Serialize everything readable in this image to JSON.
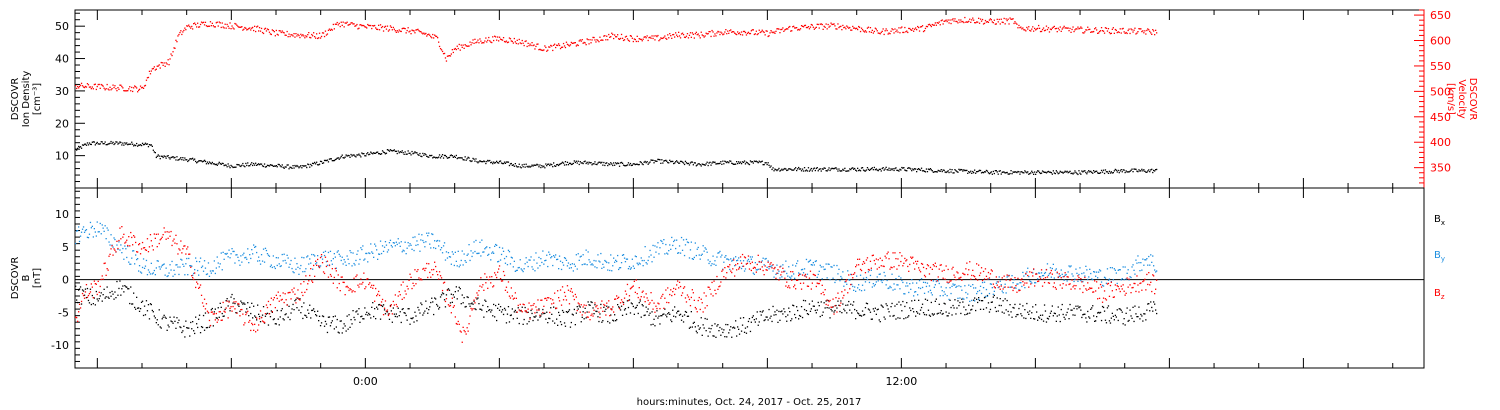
{
  "xlabel": "hours:minutes, Oct. 24, 2017 - Oct. 25, 2017",
  "chart_data": [
    {
      "type": "scatter",
      "panel": "top",
      "ylabel_left": [
        "DSCOVR",
        "Ion Density",
        "[cm⁻³]"
      ],
      "ylabel_right": [
        "DSCOVR",
        "Velocity",
        "[km/s]"
      ],
      "ylim_left": [
        0,
        55
      ],
      "ylim_right": [
        310,
        660
      ],
      "yticks_left": [
        10,
        20,
        30,
        40,
        50
      ],
      "yticks_right": [
        350,
        400,
        450,
        500,
        550,
        600,
        650
      ],
      "x_unit": "hours relative to 0:00 Oct. 25, 2017",
      "xlim": [
        -6.5,
        23.7
      ],
      "xticks": [
        {
          "x": 0,
          "label": "0:00"
        },
        {
          "x": 12,
          "label": "12:00"
        }
      ],
      "series": [
        {
          "color": "#000000",
          "axis": "left",
          "points": [
            [
              -6.5,
              12
            ],
            [
              -6.2,
              14
            ],
            [
              -5.5,
              14
            ],
            [
              -4.8,
              13.5
            ],
            [
              -4.7,
              10
            ],
            [
              -4.0,
              9
            ],
            [
              -3.5,
              8
            ],
            [
              -3.0,
              7
            ],
            [
              -2.5,
              7.5
            ],
            [
              -2.0,
              7
            ],
            [
              -1.5,
              6.5
            ],
            [
              -1.0,
              8
            ],
            [
              -0.5,
              10
            ],
            [
              0.0,
              10.5
            ],
            [
              0.5,
              11.5
            ],
            [
              1.0,
              11
            ],
            [
              1.5,
              10
            ],
            [
              2.0,
              10
            ],
            [
              2.5,
              8.5
            ],
            [
              3.0,
              8
            ],
            [
              3.5,
              7
            ],
            [
              4.0,
              7
            ],
            [
              4.5,
              8
            ],
            [
              5.0,
              8
            ],
            [
              5.5,
              7.5
            ],
            [
              6.0,
              7.5
            ],
            [
              6.5,
              8.5
            ],
            [
              7.0,
              8
            ],
            [
              7.5,
              7.5
            ],
            [
              8.0,
              8
            ],
            [
              9.0,
              8
            ],
            [
              9.1,
              6
            ],
            [
              10.0,
              6
            ],
            [
              11.0,
              6
            ],
            [
              12.0,
              6
            ],
            [
              13.0,
              5.5
            ],
            [
              14.0,
              5
            ],
            [
              15.0,
              5
            ],
            [
              16.0,
              5
            ],
            [
              17.0,
              5.5
            ],
            [
              17.7,
              5.5
            ]
          ]
        },
        {
          "color": "#ff0000",
          "axis": "right",
          "points": [
            [
              -6.5,
              512
            ],
            [
              -6.0,
              510
            ],
            [
              -5.5,
              508
            ],
            [
              -5.0,
              506
            ],
            [
              -4.8,
              545
            ],
            [
              -4.4,
              560
            ],
            [
              -4.2,
              610
            ],
            [
              -4.0,
              628
            ],
            [
              -3.5,
              635
            ],
            [
              -3.0,
              630
            ],
            [
              -2.5,
              625
            ],
            [
              -2.0,
              615
            ],
            [
              -1.5,
              612
            ],
            [
              -1.0,
              610
            ],
            [
              -0.6,
              635
            ],
            [
              0.0,
              628
            ],
            [
              0.5,
              625
            ],
            [
              1.0,
              620
            ],
            [
              1.3,
              615
            ],
            [
              1.6,
              605
            ],
            [
              1.8,
              565
            ],
            [
              2.0,
              585
            ],
            [
              2.5,
              600
            ],
            [
              3.0,
              605
            ],
            [
              3.5,
              598
            ],
            [
              4.0,
              585
            ],
            [
              4.5,
              592
            ],
            [
              5.0,
              600
            ],
            [
              5.5,
              610
            ],
            [
              6.0,
              605
            ],
            [
              6.5,
              605
            ],
            [
              7.0,
              612
            ],
            [
              7.5,
              612
            ],
            [
              8.0,
              618
            ],
            [
              8.5,
              618
            ],
            [
              9.0,
              615
            ],
            [
              9.5,
              625
            ],
            [
              10.0,
              628
            ],
            [
              10.5,
              630
            ],
            [
              11.0,
              625
            ],
            [
              11.5,
              618
            ],
            [
              12.0,
              622
            ],
            [
              12.5,
              625
            ],
            [
              13.0,
              640
            ],
            [
              13.5,
              642
            ],
            [
              14.0,
              638
            ],
            [
              14.5,
              640
            ],
            [
              14.6,
              625
            ],
            [
              15.0,
              625
            ],
            [
              16.0,
              622
            ],
            [
              17.0,
              620
            ],
            [
              17.7,
              618
            ]
          ]
        }
      ]
    },
    {
      "type": "scatter",
      "panel": "bottom",
      "ylabel_left": [
        "DSCOVR",
        "B",
        "[nT]"
      ],
      "ylim": [
        -13.5,
        14
      ],
      "yticks": [
        -10,
        -5,
        0,
        5,
        10
      ],
      "zero_line": true,
      "xlim": [
        -6.5,
        23.7
      ],
      "xticks": [
        {
          "x": 0,
          "label": "0:00"
        },
        {
          "x": 12,
          "label": "12:00"
        }
      ],
      "legend": [
        "B",
        "B",
        "B"
      ],
      "legend_subscripts": [
        "x",
        "y",
        "z"
      ],
      "legend_position": "right",
      "series": [
        {
          "legend_label": "Bx",
          "color": "#000000",
          "points": [
            [
              -6.5,
              -2
            ],
            [
              -6.0,
              -3
            ],
            [
              -5.5,
              -1
            ],
            [
              -5.0,
              -4
            ],
            [
              -4.5,
              -6.5
            ],
            [
              -4.0,
              -7.5
            ],
            [
              -3.5,
              -6
            ],
            [
              -3.0,
              -3.5
            ],
            [
              -2.5,
              -5
            ],
            [
              -2.0,
              -6
            ],
            [
              -1.5,
              -4
            ],
            [
              -1.0,
              -6.5
            ],
            [
              -0.5,
              -7
            ],
            [
              0.0,
              -4.5
            ],
            [
              0.5,
              -5
            ],
            [
              1.0,
              -5.5
            ],
            [
              1.5,
              -4
            ],
            [
              2.0,
              -2
            ],
            [
              2.5,
              -4
            ],
            [
              3.0,
              -5
            ],
            [
              3.5,
              -5.5
            ],
            [
              4.0,
              -5
            ],
            [
              4.5,
              -6
            ],
            [
              5.0,
              -4.5
            ],
            [
              5.5,
              -5.5
            ],
            [
              6.0,
              -4
            ],
            [
              6.5,
              -6
            ],
            [
              7.0,
              -5
            ],
            [
              7.5,
              -7
            ],
            [
              8.0,
              -7.5
            ],
            [
              8.5,
              -7
            ],
            [
              9.0,
              -5.5
            ],
            [
              9.5,
              -5
            ],
            [
              10.0,
              -4
            ],
            [
              10.5,
              -4.5
            ],
            [
              11.0,
              -4.5
            ],
            [
              11.5,
              -5
            ],
            [
              12.0,
              -4.5
            ],
            [
              12.5,
              -4
            ],
            [
              13.0,
              -4.5
            ],
            [
              13.5,
              -4
            ],
            [
              14.0,
              -3.5
            ],
            [
              14.5,
              -4.5
            ],
            [
              15.0,
              -5
            ],
            [
              16.0,
              -5
            ],
            [
              17.0,
              -5.5
            ],
            [
              17.7,
              -4.5
            ]
          ]
        },
        {
          "legend_label": "By",
          "color": "#1e8fe0",
          "points": [
            [
              -6.5,
              7
            ],
            [
              -6.0,
              8
            ],
            [
              -5.5,
              5
            ],
            [
              -5.0,
              2
            ],
            [
              -4.5,
              1.5
            ],
            [
              -4.0,
              2
            ],
            [
              -3.5,
              2
            ],
            [
              -3.0,
              3.5
            ],
            [
              -2.5,
              4
            ],
            [
              -2.0,
              3
            ],
            [
              -1.5,
              2
            ],
            [
              -1.0,
              3.5
            ],
            [
              -0.5,
              3
            ],
            [
              0.0,
              4
            ],
            [
              0.5,
              5
            ],
            [
              1.0,
              5.5
            ],
            [
              1.5,
              6
            ],
            [
              2.0,
              3
            ],
            [
              2.5,
              5
            ],
            [
              3.0,
              4
            ],
            [
              3.5,
              2
            ],
            [
              4.0,
              3.5
            ],
            [
              4.5,
              2.5
            ],
            [
              5.0,
              3.5
            ],
            [
              5.5,
              2.5
            ],
            [
              6.0,
              3
            ],
            [
              6.5,
              4.5
            ],
            [
              7.0,
              5.5
            ],
            [
              7.5,
              4
            ],
            [
              8.0,
              3
            ],
            [
              8.5,
              2.5
            ],
            [
              9.0,
              2
            ],
            [
              9.5,
              1.5
            ],
            [
              10.0,
              2
            ],
            [
              10.5,
              1
            ],
            [
              11.0,
              -0.5
            ],
            [
              11.5,
              0.5
            ],
            [
              12.0,
              -1
            ],
            [
              12.5,
              -1
            ],
            [
              13.0,
              -1.5
            ],
            [
              13.5,
              -2
            ],
            [
              14.0,
              -1
            ],
            [
              14.5,
              -0.5
            ],
            [
              15.0,
              1
            ],
            [
              15.5,
              1.5
            ],
            [
              16.0,
              1
            ],
            [
              16.5,
              0.5
            ],
            [
              17.0,
              1
            ],
            [
              17.5,
              3.5
            ],
            [
              17.7,
              2
            ]
          ]
        },
        {
          "legend_label": "Bz",
          "color": "#ff0000",
          "points": [
            [
              -6.5,
              -6
            ],
            [
              -6.3,
              -2
            ],
            [
              -6.0,
              -1
            ],
            [
              -5.5,
              7
            ],
            [
              -5.0,
              5
            ],
            [
              -4.5,
              7
            ],
            [
              -4.0,
              4
            ],
            [
              -3.5,
              -6
            ],
            [
              -3.0,
              -4
            ],
            [
              -2.5,
              -7
            ],
            [
              -2.0,
              -3
            ],
            [
              -1.5,
              -2
            ],
            [
              -1.0,
              3
            ],
            [
              -0.5,
              -1
            ],
            [
              0.0,
              0
            ],
            [
              0.5,
              -5
            ],
            [
              1.0,
              0
            ],
            [
              1.5,
              2
            ],
            [
              2.0,
              -5
            ],
            [
              2.2,
              -9
            ],
            [
              2.5,
              -1
            ],
            [
              3.0,
              1
            ],
            [
              3.5,
              -5
            ],
            [
              4.0,
              -4
            ],
            [
              4.5,
              -2
            ],
            [
              5.0,
              -5
            ],
            [
              5.5,
              -4
            ],
            [
              6.0,
              -1
            ],
            [
              6.5,
              -4
            ],
            [
              7.0,
              -1
            ],
            [
              7.5,
              -4
            ],
            [
              8.0,
              1
            ],
            [
              8.5,
              3
            ],
            [
              9.0,
              2
            ],
            [
              9.5,
              0
            ],
            [
              10.0,
              0
            ],
            [
              10.5,
              -4
            ],
            [
              11.0,
              2
            ],
            [
              11.5,
              3
            ],
            [
              12.0,
              3
            ],
            [
              12.5,
              1.5
            ],
            [
              13.0,
              1
            ],
            [
              13.5,
              1.5
            ],
            [
              14.0,
              0.5
            ],
            [
              14.5,
              -1
            ],
            [
              15.0,
              0.5
            ],
            [
              15.5,
              0
            ],
            [
              16.0,
              -0.5
            ],
            [
              16.5,
              -2
            ],
            [
              17.0,
              -1
            ],
            [
              17.5,
              0
            ],
            [
              17.7,
              -1
            ]
          ]
        }
      ]
    }
  ],
  "colors": {
    "density": "#000000",
    "velocity": "#ff0000",
    "bx": "#000000",
    "by": "#1e8fe0",
    "bz": "#ff0000"
  }
}
